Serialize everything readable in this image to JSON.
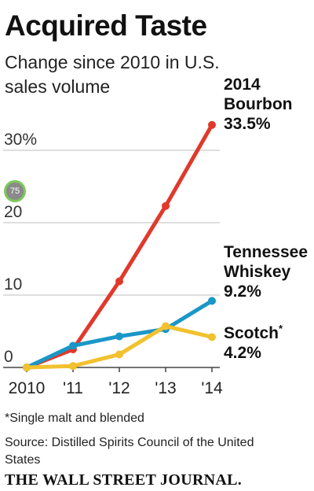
{
  "header": {
    "title": "Acquired Taste",
    "subtitle": "Change since 2010 in U.S. sales volume"
  },
  "badge": {
    "value": "75"
  },
  "footer": {
    "footnote": "*Single malt and blended",
    "source": "Source: Distilled Spirits Council of the United States",
    "publisher": "THE WALL STREET JOURNAL."
  },
  "chart_data": {
    "type": "line",
    "title": "Acquired Taste",
    "subtitle": "Change since 2010 in U.S. sales volume",
    "x": [
      2010,
      2011,
      2012,
      2013,
      2014
    ],
    "x_tick_labels": [
      "2010",
      "'11",
      "'12",
      "'13",
      "'14"
    ],
    "y_tick_labels": [
      "0",
      "10",
      "20",
      "30%"
    ],
    "y_ticks": [
      0,
      10,
      20,
      30
    ],
    "ylim": [
      0,
      35
    ],
    "grid": "horizontal",
    "series": [
      {
        "name": "Bourbon",
        "end_label_lines": [
          "2014",
          "Bourbon",
          "33.5%"
        ],
        "color": "#e0392b",
        "values": [
          0,
          2.5,
          11.9,
          22.3,
          33.5
        ]
      },
      {
        "name": "Tennessee Whiskey",
        "end_label_lines": [
          "Tennessee",
          "Whiskey",
          "9.2%"
        ],
        "color": "#1a97c8",
        "values": [
          0,
          3,
          4.3,
          5.3,
          9.2
        ]
      },
      {
        "name": "Scotch",
        "name_suffix": "*",
        "end_label_lines": [
          "Scotch",
          "4.2%"
        ],
        "color": "#f2c12e",
        "values": [
          0,
          0.2,
          1.8,
          5.7,
          4.2
        ]
      }
    ]
  }
}
